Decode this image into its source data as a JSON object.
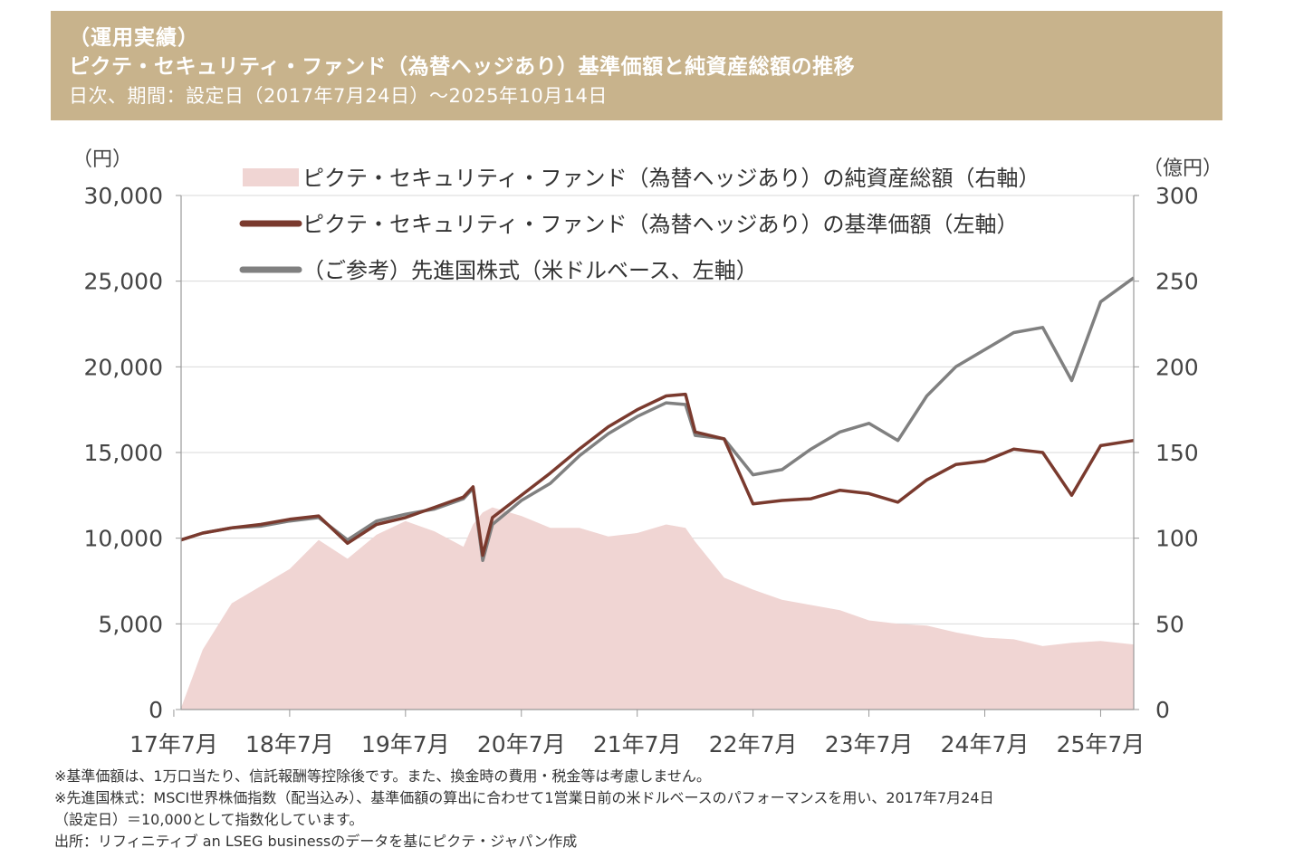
{
  "header": {
    "line1": "（運用実績）",
    "line2": "ピクテ・セキュリティ・ファンド（為替ヘッジあり）基準価額と純資産総額の推移",
    "line3": "日次、期間：設定日（2017年7月24日）～2025年10月14日"
  },
  "chart_data": {
    "type": "line",
    "left_axis_unit": "（円）",
    "right_axis_unit": "（億円）",
    "left_ylim": [
      0,
      30000
    ],
    "right_ylim": [
      0,
      300
    ],
    "left_ticks": [
      "30,000",
      "25,000",
      "20,000",
      "15,000",
      "10,000",
      "5,000",
      "0"
    ],
    "right_ticks": [
      "300",
      "250",
      "200",
      "150",
      "100",
      "50",
      "0"
    ],
    "x_ticks": [
      "17年7月",
      "18年7月",
      "19年7月",
      "20年7月",
      "21年7月",
      "22年7月",
      "23年7月",
      "24年7月",
      "25年7月"
    ],
    "grid": "horizontal",
    "legend_position": "top",
    "colors": {
      "nav": "#7a3a2e",
      "msci": "#808080",
      "assets": "#f0d5d3"
    },
    "x": [
      "2017-07",
      "2017-10",
      "2018-01",
      "2018-04",
      "2018-07",
      "2018-10",
      "2019-01",
      "2019-04",
      "2019-07",
      "2019-10",
      "2020-01",
      "2020-02",
      "2020-03",
      "2020-04",
      "2020-07",
      "2020-10",
      "2021-01",
      "2021-04",
      "2021-07",
      "2021-10",
      "2021-12",
      "2022-01",
      "2022-04",
      "2022-07",
      "2022-10",
      "2023-01",
      "2023-04",
      "2023-07",
      "2023-10",
      "2024-01",
      "2024-04",
      "2024-07",
      "2024-10",
      "2025-01",
      "2025-04",
      "2025-07",
      "2025-10"
    ],
    "series": [
      {
        "name": "ピクテ・セキュリティ・ファンド（為替ヘッジあり）の純資産総額（右軸）",
        "axis": "right",
        "style": "area",
        "values": [
          1,
          35,
          62,
          72,
          82,
          99,
          88,
          102,
          110,
          104,
          95,
          108,
          115,
          118,
          113,
          106,
          106,
          101,
          103,
          108,
          106,
          98,
          77,
          70,
          64,
          61,
          58,
          52,
          50,
          49,
          45,
          42,
          41,
          37,
          39,
          40,
          38
        ]
      },
      {
        "name": "ピクテ・セキュリティ・ファンド（為替ヘッジあり）の基準価額（左軸）",
        "axis": "left",
        "style": "line",
        "values": [
          9900,
          10300,
          10600,
          10800,
          11100,
          11300,
          9700,
          10800,
          11200,
          11800,
          12400,
          13000,
          9000,
          11200,
          12500,
          13800,
          15200,
          16500,
          17500,
          18300,
          18400,
          16200,
          15800,
          12000,
          12200,
          12300,
          12800,
          12600,
          12100,
          13400,
          14300,
          14500,
          15200,
          15000,
          12500,
          15400,
          15700
        ]
      },
      {
        "name": "（ご参考）先進国株式（米ドルベース、左軸）",
        "axis": "left",
        "style": "line",
        "values": [
          9900,
          10300,
          10600,
          10700,
          11000,
          11200,
          9900,
          11000,
          11400,
          11700,
          12300,
          12900,
          8700,
          10800,
          12200,
          13200,
          14800,
          16100,
          17100,
          17900,
          17800,
          16000,
          15800,
          13700,
          14000,
          15200,
          16200,
          16700,
          15700,
          18300,
          20000,
          21000,
          22000,
          22300,
          19200,
          23800,
          25200
        ]
      }
    ]
  },
  "notes": [
    "※基準価額は、1万口当たり、信託報酬等控除後です。また、換金時の費用・税金等は考慮しません。",
    "※先進国株式：MSCI世界株価指数（配当込み）、基準価額の算出に合わせて1営業日前の米ドルベースのパフォーマンスを用い、2017年7月24日",
    "（設定日）＝10,000として指数化しています。",
    "出所：リフィニティブ an LSEG businessのデータを基にピクテ・ジャパン作成"
  ]
}
